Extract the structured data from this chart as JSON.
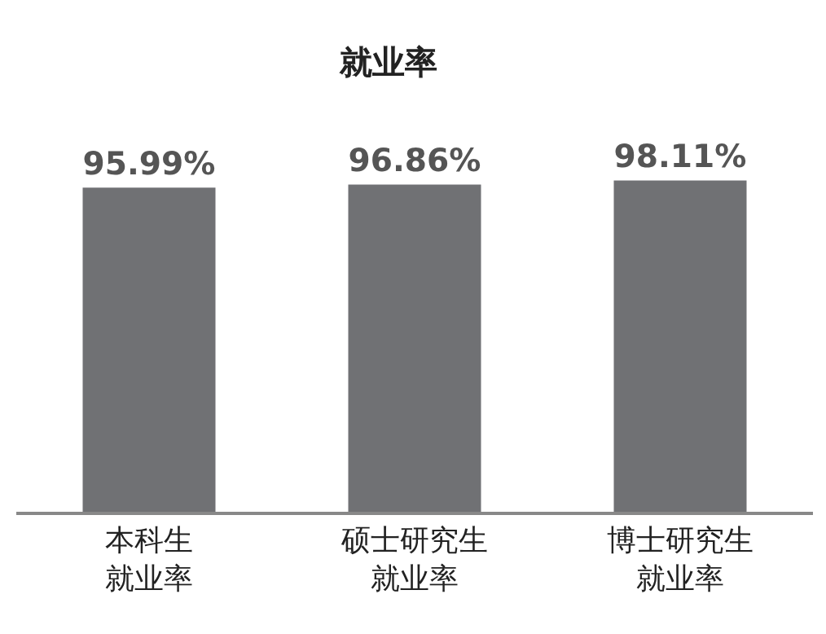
{
  "chart_data": {
    "type": "bar",
    "title": "就业率",
    "categories": [
      "本科生就业率",
      "硕士研究生就业率",
      "博士研究生就业率"
    ],
    "values": [
      95.99,
      96.86,
      98.11
    ],
    "value_labels": [
      "95.99%",
      "96.86%",
      "98.11%"
    ],
    "color": "#707174",
    "tick_labels": "x"
  }
}
